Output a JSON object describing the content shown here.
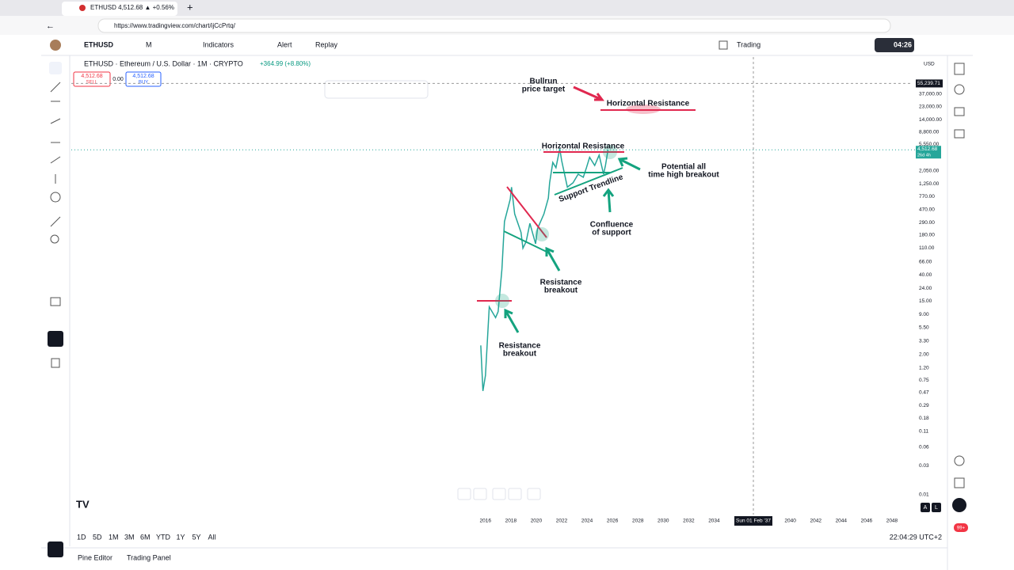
{
  "browser": {
    "tab_title": "ETHUSD 4,512.68 ▲ +0.56%",
    "url": "https://www.tradingview.com/chart/ijCcPrtq/"
  },
  "toolbar": {
    "symbol": "ETHUSD",
    "interval": "M",
    "indicators": "Indicators",
    "alert": "Alert",
    "replay": "Replay",
    "trading": "Trading",
    "timer": "04:26"
  },
  "legend": {
    "title": "ETHUSD · Ethereum / U.S. Dollar · 1M · CRYPTO",
    "change": "+364.99 (+8.80%)",
    "sell_price": "4,512.68",
    "sell": "SELL",
    "spread": "0.00",
    "buy_price": "4,512.68",
    "buy": "BUY"
  },
  "chart_data": {
    "type": "line",
    "log_scale": true,
    "currency": "USD",
    "xlim": [
      1983.4,
      2049.5
    ],
    "ylim": [
      0.005,
      150000
    ],
    "xticks": [
      2016,
      2018,
      2020,
      2022,
      2024,
      2026,
      2028,
      2030,
      2032,
      2034,
      2040,
      2042,
      2044,
      2046,
      2048
    ],
    "yticks": [
      {
        "value": 37000,
        "label": "37,000.00"
      },
      {
        "value": 23000,
        "label": "23,000.00"
      },
      {
        "value": 14000,
        "label": "14,000.00"
      },
      {
        "value": 8800,
        "label": "8,800.00"
      },
      {
        "value": 5550,
        "label": "5,550.00"
      },
      {
        "value": 2050,
        "label": "2,050.00"
      },
      {
        "value": 1250,
        "label": "1,250.00"
      },
      {
        "value": 770,
        "label": "770.00"
      },
      {
        "value": 470,
        "label": "470.00"
      },
      {
        "value": 290,
        "label": "290.00"
      },
      {
        "value": 180,
        "label": "180.00"
      },
      {
        "value": 110,
        "label": "110.00"
      },
      {
        "value": 66,
        "label": "66.00"
      },
      {
        "value": 40,
        "label": "40.00"
      },
      {
        "value": 24,
        "label": "24.00"
      },
      {
        "value": 15,
        "label": "15.00"
      },
      {
        "value": 9,
        "label": "9.00"
      },
      {
        "value": 5.5,
        "label": "5.50"
      },
      {
        "value": 3.3,
        "label": "3.30"
      },
      {
        "value": 2,
        "label": "2.00"
      },
      {
        "value": 1.2,
        "label": "1.20"
      },
      0.75,
      0.47,
      0.29,
      0.18,
      0.11,
      0.06,
      0.03,
      0.01
    ],
    "series": [
      {
        "name": "ETHUSD",
        "color": "#26a69a",
        "x": [
          2015.63,
          2015.8,
          2016.0,
          2016.3,
          2016.8,
          2017.0,
          2017.3,
          2017.5,
          2017.95,
          2018.05,
          2018.3,
          2018.8,
          2018.95,
          2019.2,
          2019.5,
          2019.95,
          2020.1,
          2020.6,
          2020.95,
          2021.05,
          2021.3,
          2021.55,
          2021.85,
          2022.0,
          2022.45,
          2022.9,
          2023.3,
          2023.7,
          2023.95,
          2024.2,
          2024.6,
          2024.95,
          2025.3,
          2025.45,
          2025.65
        ],
        "values": [
          2.8,
          0.5,
          0.9,
          12,
          8,
          10,
          50,
          300,
          700,
          1100,
          400,
          200,
          110,
          140,
          280,
          130,
          230,
          400,
          730,
          1300,
          2800,
          2300,
          4700,
          3000,
          1100,
          1300,
          1800,
          1600,
          2300,
          3400,
          2500,
          3700,
          1800,
          2500,
          4500
        ]
      }
    ],
    "last_price": {
      "value": 4512.68,
      "label": "4,512.68"
    },
    "countdown": "26d 4h",
    "crosshair": {
      "value": 55239.71,
      "label": "55,239.71",
      "date": "Sun 01 Feb '37"
    },
    "annotations": [
      {
        "lines": [
          "Bullrun",
          "price target"
        ]
      },
      {
        "lines": [
          "Horizontal Resistance"
        ]
      },
      {
        "lines": [
          "Horizontal Resistance"
        ]
      },
      {
        "lines": [
          "Potential all",
          "time high breakout"
        ]
      },
      {
        "lines": [
          "Support Trendline"
        ]
      },
      {
        "lines": [
          "Confluence",
          "of support"
        ]
      },
      {
        "lines": [
          "Resistance",
          "breakout"
        ]
      },
      {
        "lines": [
          "Resistance",
          "breakout"
        ]
      }
    ]
  },
  "bottom_bar": {
    "ranges": [
      "1D",
      "5D",
      "1M",
      "3M",
      "6M",
      "YTD",
      "1Y",
      "5Y",
      "All"
    ],
    "clock": "22:04:29 UTC+2",
    "auto": "A",
    "log": "L"
  },
  "panel_tabs": [
    "Pine Editor",
    "Trading Panel"
  ],
  "notifications": "99+"
}
